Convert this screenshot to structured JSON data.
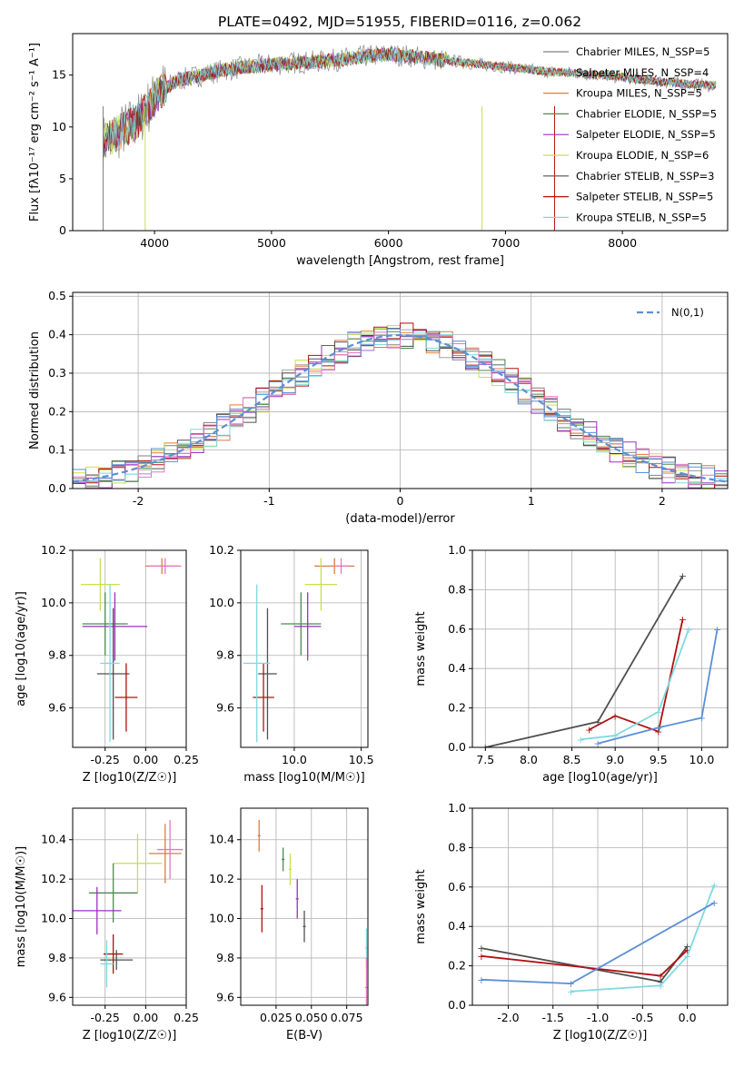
{
  "figure": {
    "title": "PLATE=0492, MJD=51955, FIBERID=0116, z=0.062"
  },
  "colors": {
    "series": [
      "#808080",
      "#a0a0a0",
      "#e07b39",
      "#4f8a4f",
      "#9b30c0",
      "#c8e04a",
      "#505050",
      "#b01010",
      "#80d8e0"
    ],
    "pink": "#e377c2",
    "blue": "#5b8fd6",
    "dashed": "#5b8fd6"
  },
  "chart_data": [
    {
      "id": "spectrum",
      "type": "line",
      "xlabel": "wavelength [Angstrom, rest frame]",
      "ylabel": "Flux [fλ10⁻¹⁷ erg cm⁻² s⁻¹ A⁻¹]",
      "xlim": [
        3300,
        8900
      ],
      "ylim": [
        0,
        19
      ],
      "xticks": [
        4000,
        5000,
        6000,
        7000,
        8000
      ],
      "yticks": [
        0,
        5,
        10,
        15
      ],
      "legend_position": "top-right",
      "legend": [
        "Chabrier MILES, N_SSP=5",
        "Salpeter MILES, N_SSP=4",
        "Kroupa MILES, N_SSP=5",
        "Chabrier ELODIE, N_SSP=5",
        "Salpeter ELODIE, N_SSP=5",
        "Kroupa ELODIE, N_SSP=6",
        "Chabrier STELIB, N_SSP=3",
        "Salpeter STELIB, N_SSP=5",
        "Kroupa STELIB, N_SSP=5"
      ],
      "x": [
        3560,
        3700,
        3850,
        3950,
        4050,
        4200,
        4400,
        4600,
        4800,
        5000,
        5200,
        5400,
        5600,
        5800,
        6000,
        6200,
        6400,
        6600,
        6800,
        7000,
        7200,
        7400,
        7600,
        7800,
        8000,
        8200,
        8400,
        8600,
        8800
      ],
      "y": [
        8.5,
        9.5,
        10.5,
        12.0,
        13.5,
        14.5,
        15.0,
        15.5,
        15.8,
        16.0,
        16.2,
        16.3,
        16.5,
        16.8,
        17.0,
        16.8,
        16.5,
        16.3,
        16.0,
        15.8,
        15.5,
        15.3,
        15.2,
        15.0,
        14.8,
        14.5,
        14.3,
        14.1,
        14.0
      ]
    },
    {
      "id": "residuals",
      "type": "line",
      "xlabel": "(data-model)/error",
      "ylabel": "Normed distribution",
      "xlim": [
        -2.5,
        2.5
      ],
      "ylim": [
        0,
        0.51
      ],
      "xticks": [
        -2,
        -1,
        0,
        1,
        2
      ],
      "yticks": [
        0.0,
        0.1,
        0.2,
        0.3,
        0.4,
        0.5
      ],
      "legend_position": "top-right",
      "legend": [
        "N(0,1)"
      ],
      "sigma": 1.0,
      "grid": true
    },
    {
      "id": "age-vs-Z",
      "type": "scatter",
      "xlabel": "Z [log10(Z/Z☉)]",
      "ylabel": "age  [log10(age/yr)]",
      "xlim": [
        -0.45,
        0.25
      ],
      "ylim": [
        9.45,
        10.2
      ],
      "xticks": [
        -0.25,
        0.0,
        0.25
      ],
      "yticks": [
        9.6,
        9.8,
        10.0,
        10.2
      ],
      "grid": true
    },
    {
      "id": "age-vs-mass",
      "type": "scatter",
      "xlabel": "mass [log10(M/M☉)]",
      "xlim": [
        9.6,
        10.55
      ],
      "ylim": [
        9.45,
        10.2
      ],
      "xticks": [
        10.0,
        10.5
      ],
      "yticks": [
        9.6,
        9.8,
        10.0,
        10.2
      ],
      "grid": true
    },
    {
      "id": "massweight-vs-age",
      "type": "line",
      "xlabel": "age  [log10(age/yr)]",
      "ylabel": "mass weight",
      "xlim": [
        7.35,
        10.3
      ],
      "ylim": [
        0,
        1
      ],
      "xticks": [
        7.5,
        8.0,
        8.5,
        9.0,
        9.5,
        10.0
      ],
      "yticks": [
        0.0,
        0.2,
        0.4,
        0.6,
        0.8,
        1.0
      ],
      "grid": true,
      "series": [
        {
          "x": [
            7.5,
            8.8,
            9.78
          ],
          "y": [
            0.0,
            0.13,
            0.87
          ]
        },
        {
          "x": [
            8.7,
            9.0,
            9.5,
            9.78
          ],
          "y": [
            0.09,
            0.16,
            0.08,
            0.65
          ]
        },
        {
          "x": [
            8.6,
            9.0,
            9.5,
            9.85
          ],
          "y": [
            0.04,
            0.06,
            0.18,
            0.6
          ]
        },
        {
          "x": [
            8.8,
            9.5,
            10.0,
            10.18
          ],
          "y": [
            0.02,
            0.1,
            0.15,
            0.6
          ]
        }
      ]
    },
    {
      "id": "mass-vs-Z",
      "type": "scatter",
      "xlabel": "Z [log10(Z/Z☉)]",
      "ylabel": "mass [log10(M/M☉)]",
      "xlim": [
        -0.45,
        0.25
      ],
      "ylim": [
        9.56,
        10.56
      ],
      "xticks": [
        -0.25,
        0.0,
        0.25
      ],
      "yticks": [
        9.6,
        9.8,
        10.0,
        10.2,
        10.4
      ],
      "grid": true
    },
    {
      "id": "mass-vs-EBV",
      "type": "scatter",
      "xlabel": "E(B-V)",
      "xlim": [
        0.0,
        0.09
      ],
      "ylim": [
        9.56,
        10.56
      ],
      "xticks": [
        0.025,
        0.05,
        0.075
      ],
      "yticks": [
        9.6,
        9.8,
        10.0,
        10.2,
        10.4
      ],
      "grid": true
    },
    {
      "id": "massweight-vs-Z",
      "type": "line",
      "xlabel": "Z [log10(Z/Z☉)]",
      "ylabel": "mass weight",
      "xlim": [
        -2.4,
        0.45
      ],
      "ylim": [
        0,
        1
      ],
      "xticks": [
        -2.0,
        -1.5,
        -1.0,
        -0.5,
        0.0
      ],
      "yticks": [
        0.0,
        0.2,
        0.4,
        0.6,
        0.8,
        1.0
      ],
      "grid": true,
      "series": [
        {
          "x": [
            -2.3,
            -0.3,
            0.0
          ],
          "y": [
            0.29,
            0.12,
            0.3
          ]
        },
        {
          "x": [
            -2.3,
            -0.3,
            0.0
          ],
          "y": [
            0.25,
            0.15,
            0.28
          ]
        },
        {
          "x": [
            -1.3,
            -0.3,
            0.0,
            0.3
          ],
          "y": [
            0.07,
            0.1,
            0.25,
            0.61
          ]
        },
        {
          "x": [
            -2.3,
            -1.3,
            0.3
          ],
          "y": [
            0.13,
            0.11,
            0.52
          ]
        }
      ]
    }
  ]
}
